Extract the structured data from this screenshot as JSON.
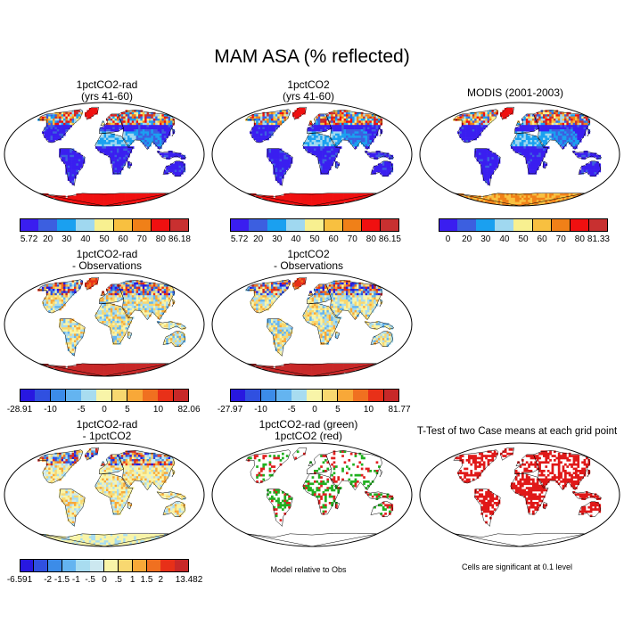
{
  "title": "MAM ASA (% reflected)",
  "panels": [
    {
      "id": "p1",
      "title1": "1pctCO2-rad",
      "title2": "(yrs 41-60)",
      "kind": "abs",
      "cbar": "abs1"
    },
    {
      "id": "p2",
      "title1": "1pctCO2",
      "title2": "(yrs 41-60)",
      "kind": "abs",
      "cbar": "abs2"
    },
    {
      "id": "p3",
      "title1": "MODIS (2001-2003)",
      "title2": "",
      "kind": "obs",
      "cbar": "abs3"
    },
    {
      "id": "p4",
      "title1": "1pctCO2-rad",
      "title2": "- Observations",
      "kind": "diff",
      "cbar": "diff1"
    },
    {
      "id": "p5",
      "title1": "1pctCO2",
      "title2": "- Observations",
      "kind": "diff",
      "cbar": "diff2"
    },
    {
      "id": "p6",
      "title1": "1pctCO2-rad",
      "title2": "- 1pctCO2",
      "kind": "mdiff",
      "cbar": "mdiff"
    },
    {
      "id": "p7",
      "title1": "1pctCO2-rad (green)",
      "title2": "1pctCO2 (red)",
      "kind": "rg",
      "cbar": ""
    },
    {
      "id": "p8",
      "title1": "T-Test of two Case means at each grid point",
      "title2": "",
      "kind": "tt",
      "cbar": ""
    }
  ],
  "notes": {
    "p7": "Model relative to Obs",
    "p8": "Cells are significant at 0.1 level"
  },
  "colorbars": {
    "abs1": {
      "colors": [
        "#3a1ef0",
        "#3c5fe0",
        "#1aa0f0",
        "#a0d8f0",
        "#f8f090",
        "#f8c040",
        "#f08018",
        "#f01010",
        "#c83030"
      ],
      "labels": [
        "5.72",
        "20",
        "30",
        "40",
        "50",
        "60",
        "70",
        "80",
        "86.18"
      ]
    },
    "abs2": {
      "colors": [
        "#3a1ef0",
        "#3c5fe0",
        "#1aa0f0",
        "#a0d8f0",
        "#f8f090",
        "#f8c040",
        "#f08018",
        "#f01010",
        "#c83030"
      ],
      "labels": [
        "5.72",
        "20",
        "30",
        "40",
        "50",
        "60",
        "70",
        "80",
        "86.15"
      ]
    },
    "abs3": {
      "colors": [
        "#3a1ef0",
        "#3c5fe0",
        "#1aa0f0",
        "#a0d8f0",
        "#f8f090",
        "#f8c040",
        "#f08018",
        "#f01010",
        "#c83030"
      ],
      "labels": [
        "0",
        "20",
        "30",
        "40",
        "50",
        "60",
        "70",
        "80",
        "81.33"
      ]
    },
    "diff1": {
      "colors": [
        "#2818e0",
        "#3050e0",
        "#3c8ce8",
        "#64b4f0",
        "#a8dcf0",
        "#f8f4a8",
        "#f8d870",
        "#f8a838",
        "#f07020",
        "#e83018",
        "#c82828"
      ],
      "labels": [
        "-28.91",
        "-10",
        "-5",
        "0",
        "5",
        "10",
        "82.06"
      ],
      "labelIdx": [
        0,
        2,
        4,
        5.5,
        7,
        9,
        11
      ]
    },
    "diff2": {
      "colors": [
        "#2818e0",
        "#3050e0",
        "#3c8ce8",
        "#64b4f0",
        "#a8dcf0",
        "#f8f4a8",
        "#f8d870",
        "#f8a838",
        "#f07020",
        "#e83018",
        "#c82828"
      ],
      "labels": [
        "-27.97",
        "-10",
        "-5",
        "0",
        "5",
        "10",
        "81.77"
      ],
      "labelIdx": [
        0,
        2,
        4,
        5.5,
        7,
        9,
        11
      ]
    },
    "mdiff": {
      "colors": [
        "#2818e0",
        "#3050e0",
        "#3c8ce8",
        "#64b4f0",
        "#a8dcf0",
        "#cce8f0",
        "#f8f4a8",
        "#f8d870",
        "#f8a838",
        "#f07020",
        "#e83018",
        "#c82828"
      ],
      "labels": [
        "-6.591",
        "-2",
        "-1.5",
        "-1",
        "-.5",
        "0",
        ".5",
        "1",
        "1.5",
        "2",
        "13.482"
      ],
      "labelIdx": [
        0,
        2,
        3,
        4,
        5,
        6,
        7,
        8,
        9,
        10,
        12
      ]
    }
  }
}
